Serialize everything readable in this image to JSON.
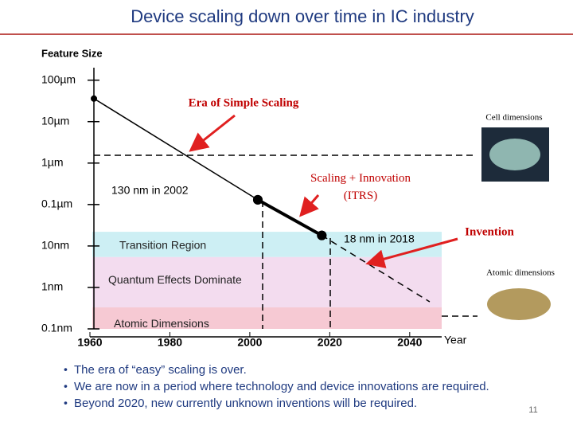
{
  "slide": {
    "title": "Device scaling down over time in IC industry",
    "bullets": [
      "The era of “easy” scaling is over.",
      "We are now in a period where technology and device innovations are required.",
      "Beyond 2020, new currently unknown inventions will be required."
    ],
    "page_number": "11"
  },
  "chart_data": {
    "type": "line",
    "y_label": "Feature Size",
    "x_label": "Year",
    "log_y": true,
    "xlim": [
      1960,
      2048
    ],
    "xticks": [
      1960,
      1980,
      2000,
      2020,
      2040
    ],
    "ylim": [
      0.1,
      200000
    ],
    "yticks": [
      {
        "value": 100000,
        "label": "100µm"
      },
      {
        "value": 10000,
        "label": "10µm"
      },
      {
        "value": 1000,
        "label": "1µm"
      },
      {
        "value": 100,
        "label": "0.1µm"
      },
      {
        "value": 10,
        "label": "10nm"
      },
      {
        "value": 1,
        "label": "1nm"
      },
      {
        "value": 0.1,
        "label": "0.1nm"
      }
    ],
    "series": [
      {
        "color": "#000000",
        "style": "solid",
        "x": [
          1961,
          2002
        ],
        "values": [
          36000,
          130
        ]
      },
      {
        "color": "#000000",
        "style": "thick",
        "x": [
          2002,
          2018
        ],
        "values": [
          130,
          18
        ]
      },
      {
        "color": "#000000",
        "style": "dashed",
        "x": [
          2018,
          2045
        ],
        "values": [
          18,
          0.45
        ]
      }
    ],
    "regions": [
      {
        "label": "Transition Region",
        "from": 5.4,
        "to": 22,
        "color": "#cdeff4"
      },
      {
        "label": "Quantum Effects Dominate",
        "from": 0.33,
        "to": 5.4,
        "color": "#f3dcef"
      },
      {
        "label": "Atomic Dimensions",
        "from": 0.1,
        "to": 0.33,
        "color": "#f6c9d3"
      }
    ],
    "annotations": [
      "130 nm in 2002",
      "18 nm in 2018",
      "Era of Simple Scaling",
      "Scaling + Innovation (ITRS)",
      "Invention",
      "Cell dimensions",
      "Atomic dimensions"
    ]
  }
}
